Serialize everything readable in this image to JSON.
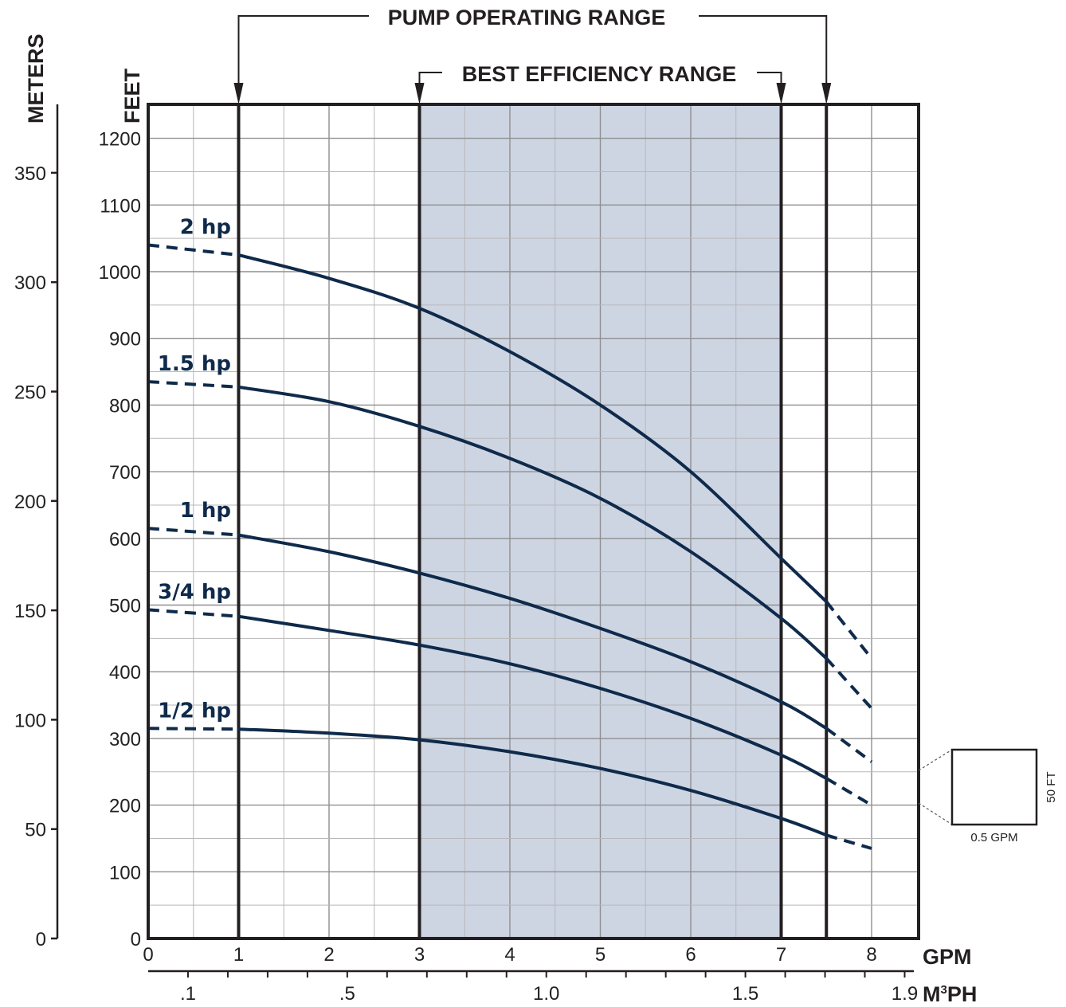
{
  "chart_data": {
    "type": "line",
    "title": "",
    "range_labels": {
      "operating": "PUMP OPERATING RANGE",
      "efficiency": "BEST EFFICIENCY RANGE"
    },
    "ranges": {
      "operating_gpm": [
        1,
        7.5
      ],
      "efficiency_gpm": [
        3,
        7
      ]
    },
    "x_axis": {
      "label": "GPM",
      "range": [
        0,
        8.5
      ],
      "ticks": [
        0,
        1,
        2,
        3,
        4,
        5,
        6,
        7,
        8
      ],
      "tick_labels": [
        "0",
        "1",
        "2",
        "3",
        "4",
        "5",
        "6",
        "7",
        "8"
      ]
    },
    "x2_axis": {
      "label": "M³PH",
      "label_main": "M",
      "label_sup": "3",
      "label_tail": "PH",
      "gpm_per_unit": 4.4029,
      "ticks": [
        0.1,
        0.5,
        1.0,
        1.5,
        1.9
      ],
      "tick_labels": [
        ".1",
        ".5",
        "1.0",
        "1.5",
        "1.9"
      ]
    },
    "y_axis": {
      "label": "FEET",
      "range": [
        0,
        1250
      ],
      "ticks": [
        0,
        100,
        200,
        300,
        400,
        500,
        600,
        700,
        800,
        900,
        1000,
        1100,
        1200
      ],
      "tick_labels": [
        "0",
        "100",
        "200",
        "300",
        "400",
        "500",
        "600",
        "700",
        "800",
        "900",
        "1000",
        "1100",
        "1200"
      ]
    },
    "y2_axis": {
      "label": "METERS",
      "feet_per_unit": 3.2808,
      "ticks": [
        0,
        50,
        100,
        150,
        200,
        250,
        300,
        350
      ],
      "tick_labels": [
        "0",
        "50",
        "100",
        "150",
        "200",
        "250",
        "300",
        "350"
      ]
    },
    "grid": true,
    "series": [
      {
        "name": "2 hp",
        "x": [
          0,
          1,
          2,
          3,
          4,
          5,
          6,
          7,
          7.5,
          8
        ],
        "y": [
          1040,
          1025,
          990,
          945,
          880,
          800,
          700,
          570,
          505,
          420
        ]
      },
      {
        "name": "1.5 hp",
        "x": [
          0,
          1,
          2,
          3,
          4,
          5,
          6,
          7,
          7.5,
          8
        ],
        "y": [
          835,
          827,
          805,
          768,
          720,
          660,
          580,
          480,
          420,
          345
        ]
      },
      {
        "name": "1 hp",
        "x": [
          0,
          1,
          2,
          3,
          4,
          5,
          6,
          7,
          7.5,
          8
        ],
        "y": [
          615,
          605,
          580,
          548,
          510,
          465,
          415,
          355,
          315,
          265
        ]
      },
      {
        "name": "3/4 hp",
        "x": [
          0,
          1,
          2,
          3,
          4,
          5,
          6,
          7,
          7.5,
          8
        ],
        "y": [
          493,
          483,
          462,
          440,
          412,
          375,
          330,
          275,
          240,
          200
        ]
      },
      {
        "name": "1/2 hp",
        "x": [
          0,
          1,
          2,
          3,
          4,
          5,
          6,
          7,
          7.5,
          8
        ],
        "y": [
          315,
          314,
          308,
          298,
          280,
          255,
          222,
          180,
          155,
          135
        ]
      }
    ],
    "solid_range_gpm": [
      1,
      7.5
    ],
    "legend_box": {
      "height_label": "50 FT",
      "width_label": "0.5 GPM"
    },
    "colors": {
      "curve": "#0f2a4a",
      "efficiency_fill": "#cdd5e3",
      "frame": "#231f20",
      "grid_minor": "#b8b8b8",
      "grid_major": "#8f8f8f"
    }
  }
}
